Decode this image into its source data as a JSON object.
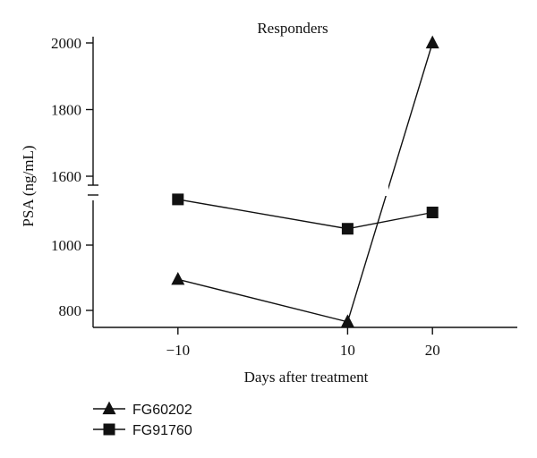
{
  "chart_data": {
    "type": "line",
    "title": "Responders",
    "xlabel": "Days after treatment",
    "ylabel": "PSA (ng/mL)",
    "x": [
      -10,
      10,
      20
    ],
    "x_tick_labels": [
      "−10",
      "10",
      "20"
    ],
    "xlim": [
      -20,
      30
    ],
    "y_axis_break": true,
    "y_lower_segment": {
      "range": [
        750,
        1200
      ],
      "ticks": [
        800,
        1000
      ]
    },
    "y_upper_segment": {
      "range": [
        1600,
        2000
      ],
      "ticks": [
        1600,
        1800,
        2000
      ]
    },
    "y_tick_labels": [
      "800",
      "1000",
      "1600",
      "1800",
      "2000"
    ],
    "series": [
      {
        "name": "FG60202",
        "marker": "triangle",
        "x": [
          -10,
          10,
          20
        ],
        "values": [
          895,
          765,
          2000
        ]
      },
      {
        "name": "FG91760",
        "marker": "square",
        "x": [
          -10,
          10,
          20
        ],
        "values": [
          1140,
          1050,
          1100
        ]
      }
    ],
    "legend_position": "bottom-left",
    "grid": false,
    "colors": {
      "line": "#111111",
      "marker": "#111111",
      "background": "#ffffff"
    }
  }
}
